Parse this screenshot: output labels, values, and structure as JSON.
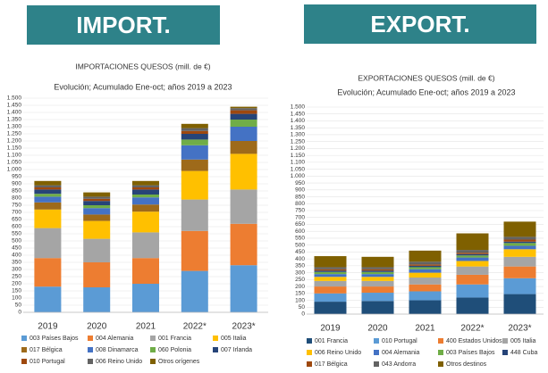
{
  "banners": {
    "import": "IMPORT.",
    "export": "EXPORT."
  },
  "chart_data": [
    {
      "type": "stacked_bar",
      "title": "IMPORTACIONES QUESOS (mill. de €)",
      "subtitle": "Evolución; Acumulado Ene-oct; años 2019 a 2023",
      "categories": [
        "2019",
        "2020",
        "2021",
        "2022*",
        "2023*"
      ],
      "ylim": [
        0,
        1500
      ],
      "yticks": [
        0,
        50,
        100,
        150,
        200,
        250,
        300,
        350,
        400,
        450,
        500,
        550,
        600,
        650,
        700,
        750,
        800,
        850,
        900,
        950,
        {
          "value": 1000,
          "label": "1.000"
        },
        {
          "value": 1050,
          "label": "1.050"
        },
        {
          "value": 1100,
          "label": "1.100"
        },
        {
          "value": 1150,
          "label": "1.150"
        },
        {
          "value": 1200,
          "label": "1.200"
        },
        {
          "value": 1250,
          "label": "1.250"
        },
        {
          "value": 1300,
          "label": "1.300"
        },
        {
          "value": 1350,
          "label": "1.350"
        },
        {
          "value": 1400,
          "label": "1.400"
        },
        {
          "value": 1450,
          "label": "1.450"
        },
        {
          "value": 1500,
          "label": "1.500"
        }
      ],
      "grid": true,
      "series": [
        {
          "name": "003 Países Bajos",
          "color": "#5b9bd5",
          "values": [
            180,
            175,
            200,
            290,
            330
          ]
        },
        {
          "name": "004 Alemania",
          "color": "#ed7d31",
          "values": [
            200,
            175,
            180,
            280,
            290
          ]
        },
        {
          "name": "001 Francia",
          "color": "#a5a5a5",
          "values": [
            210,
            165,
            180,
            220,
            240
          ]
        },
        {
          "name": "005 Italia",
          "color": "#ffc000",
          "values": [
            130,
            125,
            145,
            200,
            250
          ]
        },
        {
          "name": "017 Bélgica",
          "color": "#9e6a1a",
          "values": [
            50,
            45,
            50,
            80,
            90
          ]
        },
        {
          "name": "008 Dinamarca",
          "color": "#4472c4",
          "values": [
            40,
            45,
            50,
            100,
            100
          ]
        },
        {
          "name": "060 Polonia",
          "color": "#70ad47",
          "values": [
            20,
            20,
            20,
            40,
            50
          ]
        },
        {
          "name": "007 Irlanda",
          "color": "#264478",
          "values": [
            30,
            30,
            35,
            40,
            40
          ]
        },
        {
          "name": "010 Portugal",
          "color": "#9e480e",
          "values": [
            15,
            15,
            15,
            20,
            25
          ]
        },
        {
          "name": "006 Reino Unido",
          "color": "#636363",
          "values": [
            15,
            15,
            15,
            20,
            15
          ]
        },
        {
          "name": "Otros orígenes",
          "color": "#7f6000",
          "values": [
            30,
            30,
            30,
            30,
            10
          ]
        }
      ]
    },
    {
      "type": "stacked_bar",
      "title": "EXPORTACIONES QUESOS (mill. de €)",
      "subtitle": "Evolución; Acumulado Ene-oct; años 2019 a 2023",
      "categories": [
        "2019",
        "2020",
        "2021",
        "2022*",
        "2023*"
      ],
      "ylim": [
        0,
        1500
      ],
      "yticks": [
        0,
        50,
        100,
        150,
        200,
        250,
        300,
        350,
        400,
        450,
        500,
        550,
        600,
        650,
        700,
        750,
        800,
        850,
        900,
        950,
        {
          "value": 1000,
          "label": "1.000"
        },
        {
          "value": 1050,
          "label": "1.050"
        },
        {
          "value": 1100,
          "label": "1.100"
        },
        {
          "value": 1150,
          "label": "1.150"
        },
        {
          "value": 1200,
          "label": "1.200"
        },
        {
          "value": 1250,
          "label": "1.250"
        },
        {
          "value": 1300,
          "label": "1.300"
        },
        {
          "value": 1350,
          "label": "1.350"
        },
        {
          "value": 1400,
          "label": "1.400"
        },
        {
          "value": 1450,
          "label": "1.450"
        },
        {
          "value": 1500,
          "label": "1.500"
        }
      ],
      "grid": true,
      "series": [
        {
          "name": "001 Francia",
          "color": "#1f4e79",
          "values": [
            90,
            95,
            100,
            120,
            145
          ]
        },
        {
          "name": "010 Portugal",
          "color": "#5b9bd5",
          "values": [
            60,
            60,
            65,
            95,
            115
          ]
        },
        {
          "name": "400 Estados Unidos",
          "color": "#ed7d31",
          "values": [
            50,
            45,
            50,
            70,
            85
          ]
        },
        {
          "name": "005 Italia",
          "color": "#a5a5a5",
          "values": [
            40,
            40,
            50,
            60,
            70
          ]
        },
        {
          "name": "006 Reino Unido",
          "color": "#ffc000",
          "values": [
            30,
            30,
            35,
            40,
            55
          ]
        },
        {
          "name": "004 Alemania",
          "color": "#4472c4",
          "values": [
            20,
            20,
            25,
            25,
            25
          ]
        },
        {
          "name": "003 Países Bajos",
          "color": "#70ad47",
          "values": [
            15,
            15,
            15,
            15,
            20
          ]
        },
        {
          "name": "448 Cuba",
          "color": "#264478",
          "values": [
            10,
            10,
            10,
            10,
            10
          ]
        },
        {
          "name": "017 Bélgica",
          "color": "#9e480e",
          "values": [
            10,
            10,
            10,
            10,
            15
          ]
        },
        {
          "name": "043 Andorra",
          "color": "#636363",
          "values": [
            15,
            15,
            20,
            20,
            20
          ]
        },
        {
          "name": "Otros destinos",
          "color": "#7f6000",
          "values": [
            80,
            75,
            80,
            120,
            110
          ]
        }
      ]
    }
  ]
}
